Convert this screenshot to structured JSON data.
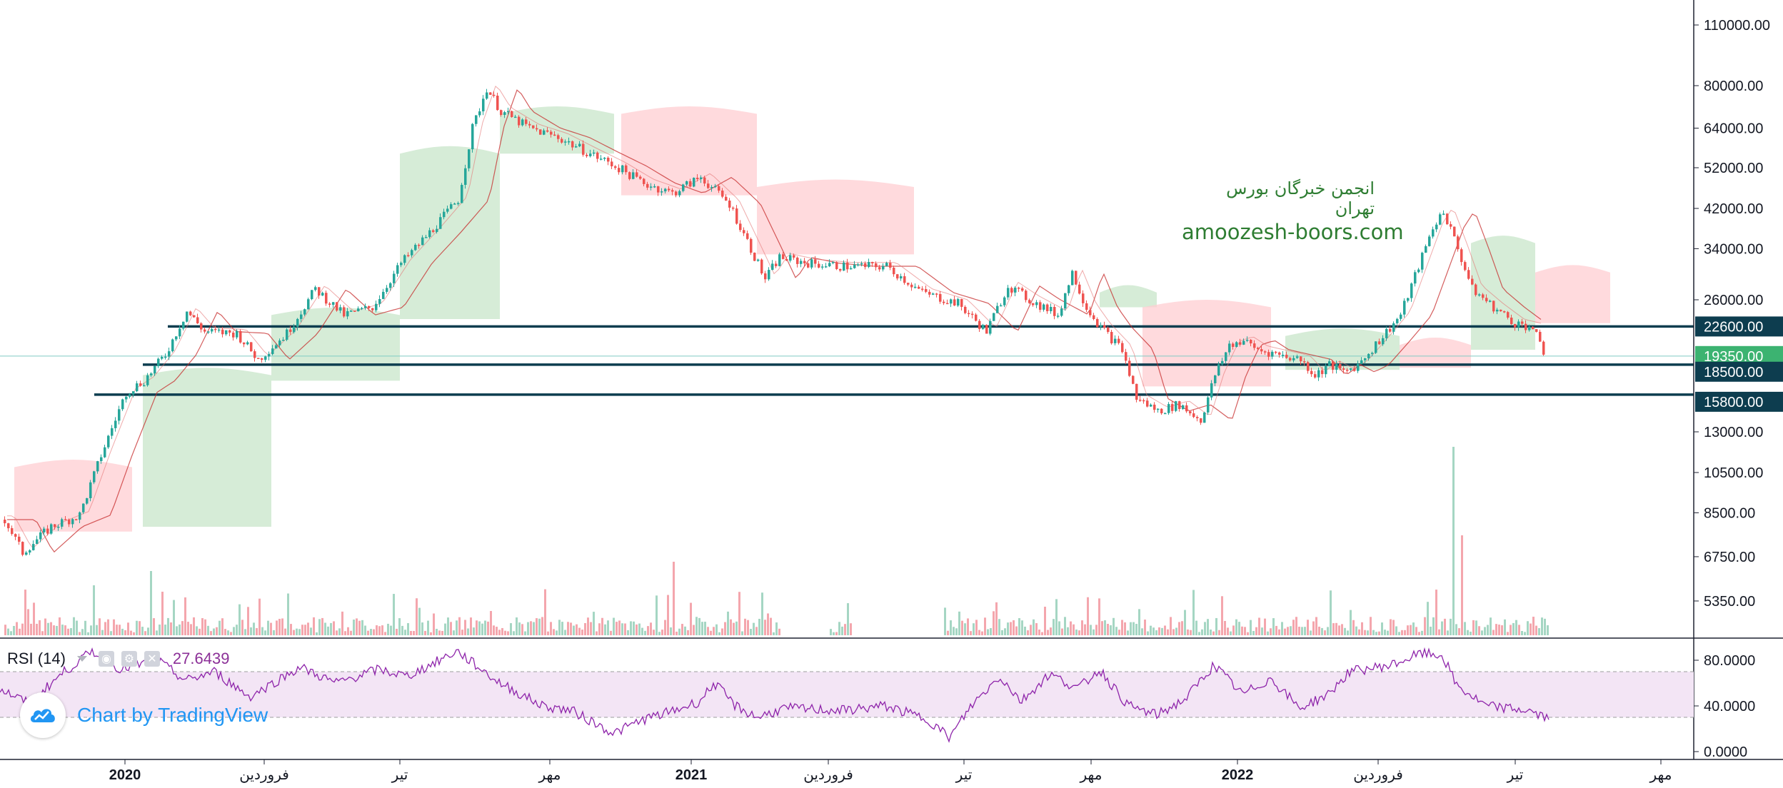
{
  "chart_data": {
    "type": "candlestick",
    "price_axis": {
      "scale": "log",
      "ticks": [
        "110000.00",
        "80000.00",
        "64000.00",
        "52000.00",
        "42000.00",
        "34000.00",
        "26000.00",
        "13000.00",
        "10500.00",
        "8500.00",
        "6750.00",
        "5350.00"
      ]
    },
    "time_axis": {
      "labels": [
        "2020",
        "فروردین",
        "تیر",
        "مهر",
        "2021",
        "فروردین",
        "تیر",
        "مهر",
        "2022",
        "فروردین",
        "تیر",
        "مهر"
      ]
    },
    "last_price": "19350.00",
    "horizontal_levels": [
      {
        "value": 22600,
        "label": "22600.00"
      },
      {
        "value": 18500,
        "label": "18500.00"
      },
      {
        "value": 15800,
        "label": "15800.00"
      }
    ],
    "rsi": {
      "name": "RSI (14)",
      "value": "27.6439",
      "ticks": [
        "80.0000",
        "40.0000",
        "0.0000"
      ],
      "overbought": 70,
      "oversold": 30
    },
    "watermark": {
      "line1": "انجمن خبرگان بورس تهران",
      "line2": "amoozesh-boors.com"
    },
    "branding": "Chart by TradingView",
    "colors": {
      "up": "#26a69a",
      "down": "#ef5350",
      "level_line": "#0d3d4f",
      "last_price_tag": "#3cb371",
      "rsi_line": "#8e24aa",
      "rsi_band": "#f3e5f5",
      "cloud_up": "#c8e6c9",
      "cloud_down": "#ffcdd2",
      "volume_up": "#a5d6c3",
      "volume_down": "#f4a6ad"
    }
  }
}
